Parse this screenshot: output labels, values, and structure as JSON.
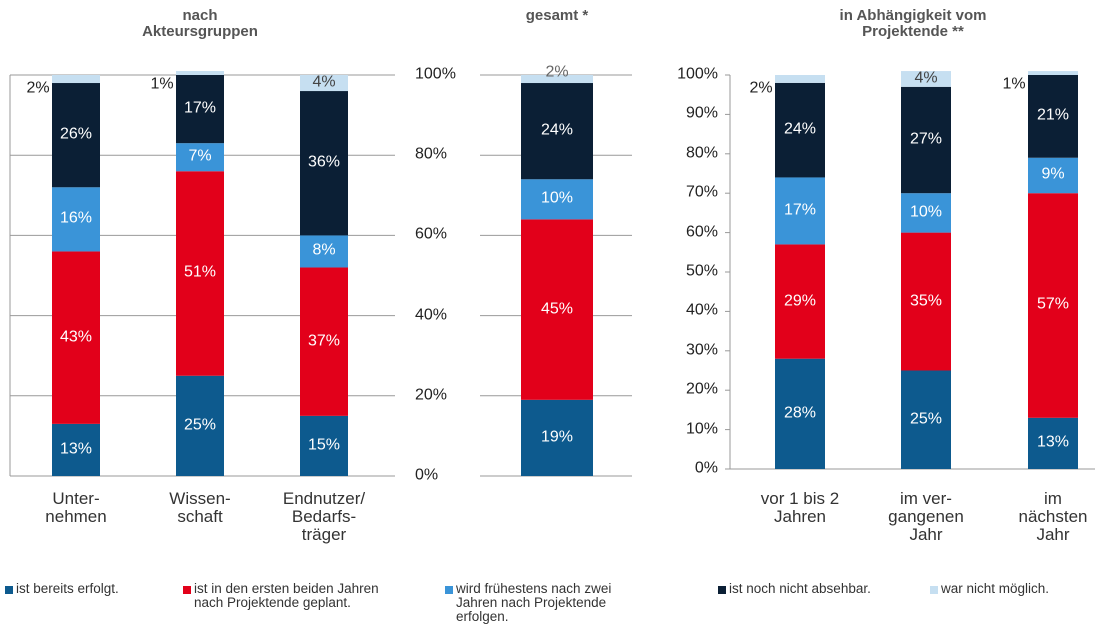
{
  "chart_data": [
    {
      "type": "stacked_bar",
      "title": "nach\nAkteursgruppen",
      "categories": [
        "Unter-\nnehmen",
        "Wissen-\nschaft",
        "Endnutzer/\nBedarfs-\nträger"
      ],
      "ylim": [
        0,
        100
      ],
      "yticks": [
        {
          "value": 0,
          "label": "0%"
        },
        {
          "value": 20,
          "label": "20%"
        },
        {
          "value": 40,
          "label": "40%"
        },
        {
          "value": 60,
          "label": "60%"
        },
        {
          "value": 80,
          "label": "80%"
        },
        {
          "value": 100,
          "label": "100%"
        }
      ],
      "grid": true,
      "series": [
        {
          "name": "ist bereits erfolgt.",
          "color": "#0d5a8e",
          "values": [
            13,
            25,
            15
          ],
          "value_labels": [
            "13%",
            "25%",
            "15%"
          ]
        },
        {
          "name": "ist in den ersten beiden Jahren\nnach Projektende geplant.",
          "color": "#e2001a",
          "values": [
            43,
            51,
            37
          ],
          "value_labels": [
            "43%",
            "51%",
            "37%"
          ]
        },
        {
          "name": "wird frühestens nach zwei\nJahren nach Projektende\nerfolgen.",
          "color": "#3a94d8",
          "values": [
            16,
            7,
            8
          ],
          "value_labels": [
            "16%",
            "7%",
            "8%"
          ]
        },
        {
          "name": "ist noch nicht absehbar.",
          "color": "#0b1f35",
          "values": [
            26,
            17,
            36
          ],
          "value_labels": [
            "26%",
            "17%",
            "36%"
          ]
        },
        {
          "name": "war nicht möglich.",
          "color": "#c6dff1",
          "values": [
            2,
            1,
            4
          ],
          "value_labels": [
            "2%",
            "1%",
            "4%"
          ]
        }
      ]
    },
    {
      "type": "stacked_bar",
      "title": "gesamt *",
      "categories": [
        null
      ],
      "ylim": [
        0,
        100
      ],
      "yticks": [
        0,
        20,
        40,
        60,
        80,
        100
      ],
      "grid": true,
      "series": [
        {
          "values": [
            19
          ],
          "value_labels": [
            "19%"
          ]
        },
        {
          "values": [
            45
          ],
          "value_labels": [
            "45%"
          ]
        },
        {
          "values": [
            10
          ],
          "value_labels": [
            "10%"
          ]
        },
        {
          "values": [
            24
          ],
          "value_labels": [
            "24%"
          ]
        },
        {
          "values": [
            2
          ],
          "value_labels": [
            "2%"
          ]
        }
      ]
    },
    {
      "type": "stacked_bar",
      "title": "in Abhängigkeit vom\nProjektende **",
      "categories": [
        "vor 1 bis 2\nJahren",
        "im ver-\ngangenen\nJahr",
        "im\nnächsten\nJahr"
      ],
      "ylim": [
        0,
        100
      ],
      "yticks": [
        {
          "value": 0,
          "label": "0%"
        },
        {
          "value": 10,
          "label": "10%"
        },
        {
          "value": 20,
          "label": "20%"
        },
        {
          "value": 30,
          "label": "30%"
        },
        {
          "value": 40,
          "label": "40%"
        },
        {
          "value": 50,
          "label": "50%"
        },
        {
          "value": 60,
          "label": "60%"
        },
        {
          "value": 70,
          "label": "70%"
        },
        {
          "value": 80,
          "label": "80%"
        },
        {
          "value": 90,
          "label": "90%"
        },
        {
          "value": 100,
          "label": "100%"
        }
      ],
      "grid": false,
      "series": [
        {
          "values": [
            28,
            25,
            13
          ],
          "value_labels": [
            "28%",
            "25%",
            "13%"
          ]
        },
        {
          "values": [
            29,
            35,
            57
          ],
          "value_labels": [
            "29%",
            "35%",
            "57%"
          ]
        },
        {
          "values": [
            17,
            10,
            9
          ],
          "value_labels": [
            "17%",
            "10%",
            "9%"
          ]
        },
        {
          "values": [
            24,
            27,
            21
          ],
          "value_labels": [
            "24%",
            "27%",
            "21%"
          ]
        },
        {
          "values": [
            2,
            4,
            1
          ],
          "value_labels": [
            "2%",
            "4%",
            "1%"
          ]
        }
      ]
    }
  ]
}
